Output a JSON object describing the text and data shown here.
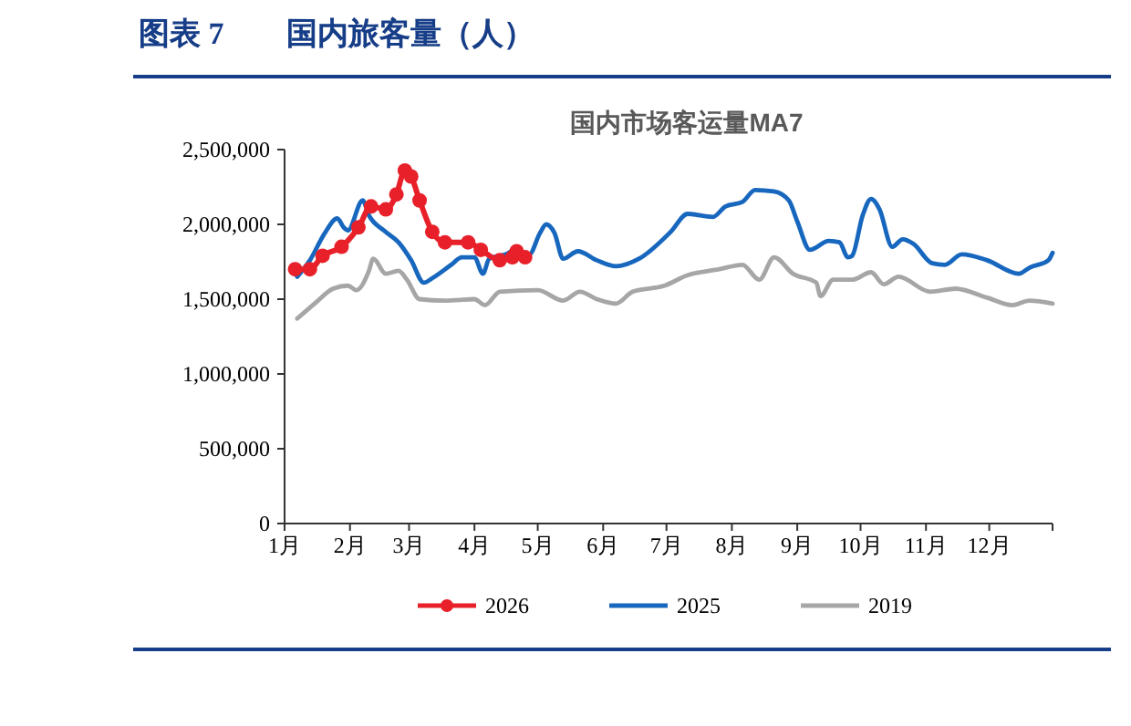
{
  "chart_data": {
    "type": "line",
    "title": "图表 7　　国内旅客量（人）",
    "subtitle": "国内市场客运量MA7",
    "xlim": [
      "--01-01",
      "--12-31"
    ],
    "xticks": [
      {
        "value": "--01-01",
        "label": "1月"
      },
      {
        "value": "--02-01",
        "label": "2月"
      },
      {
        "value": "--03-01",
        "label": "3月"
      },
      {
        "value": "--04-01",
        "label": "4月"
      },
      {
        "value": "--05-01",
        "label": "5月"
      },
      {
        "value": "--06-01",
        "label": "6月"
      },
      {
        "value": "--07-01",
        "label": "7月"
      },
      {
        "value": "--08-01",
        "label": "8月"
      },
      {
        "value": "--09-01",
        "label": "9月"
      },
      {
        "value": "--10-01",
        "label": "10月"
      },
      {
        "value": "--11-01",
        "label": "11月"
      },
      {
        "value": "--12-01",
        "label": "12月"
      },
      {
        "value": "--12-31",
        "label": null
      }
    ],
    "ylim": [
      0,
      2500000
    ],
    "yticks": [
      {
        "value": 0,
        "label": "0"
      },
      {
        "value": 500000,
        "label": "500,000"
      },
      {
        "value": 1000000,
        "label": "1,000,000"
      },
      {
        "value": 1500000,
        "label": "1,500,000"
      },
      {
        "value": 2000000,
        "label": "2,000,000"
      },
      {
        "value": 2500000,
        "label": "2,500,000"
      }
    ],
    "grid": false,
    "legend": "bottom",
    "series": [
      {
        "name": "2026",
        "color": "#e8202a",
        "marker": "circle",
        "x": [
          "--01-06",
          "--01-13",
          "--01-19",
          "--01-28",
          "--02-05",
          "--02-11",
          "--02-18",
          "--02-23",
          "--02-27",
          "--03-02",
          "--03-06",
          "--03-12",
          "--03-18",
          "--03-29",
          "--04-04",
          "--04-13",
          "--04-19",
          "--04-21",
          "--04-25"
        ],
        "values": [
          1700000,
          1700000,
          1790000,
          1850000,
          1980000,
          2120000,
          2100000,
          2200000,
          2360000,
          2320000,
          2160000,
          1950000,
          1880000,
          1880000,
          1830000,
          1760000,
          1780000,
          1820000,
          1780000
        ]
      },
      {
        "name": "2025",
        "color": "#1767be",
        "marker": "none",
        "x": [
          "--01-07",
          "--01-13",
          "--01-20",
          "--01-26",
          "--01-29",
          "--01-31",
          "--02-07",
          "--02-10",
          "--02-17",
          "--02-24",
          "--03-02",
          "--03-08",
          "--03-12",
          "--03-21",
          "--03-26",
          "--04-01",
          "--04-05",
          "--04-08",
          "--04-16",
          "--04-20",
          "--04-27",
          "--05-02",
          "--05-05",
          "--05-09",
          "--05-13",
          "--05-20",
          "--05-29",
          "--06-07",
          "--06-18",
          "--07-03",
          "--07-11",
          "--07-23",
          "--07-29",
          "--08-06",
          "--08-12",
          "--08-21",
          "--08-28",
          "--09-01",
          "--09-07",
          "--09-16",
          "--09-21",
          "--09-25",
          "--09-27",
          "--10-02",
          "--10-06",
          "--10-10",
          "--10-16",
          "--10-21",
          "--10-26",
          "--11-04",
          "--11-10",
          "--11-18",
          "--11-30",
          "--12-15",
          "--12-20",
          "--12-29",
          "--12-31"
        ],
        "values": [
          1650000,
          1760000,
          1940000,
          2040000,
          1980000,
          1960000,
          2160000,
          2060000,
          1960000,
          1880000,
          1760000,
          1610000,
          1640000,
          1730000,
          1780000,
          1780000,
          1670000,
          1770000,
          1800000,
          1830000,
          1800000,
          1940000,
          2000000,
          1940000,
          1770000,
          1820000,
          1760000,
          1720000,
          1770000,
          1950000,
          2070000,
          2050000,
          2120000,
          2150000,
          2230000,
          2220000,
          2160000,
          2020000,
          1830000,
          1890000,
          1880000,
          1780000,
          1790000,
          2060000,
          2170000,
          2100000,
          1850000,
          1900000,
          1870000,
          1740000,
          1730000,
          1800000,
          1760000,
          1670000,
          1710000,
          1760000,
          1810000
        ]
      },
      {
        "name": "2019",
        "color": "#a6a6a6",
        "marker": "none",
        "x": [
          "--01-07",
          "--01-16",
          "--01-24",
          "--01-31",
          "--02-04",
          "--02-10",
          "--02-12",
          "--02-18",
          "--02-24",
          "--02-28",
          "--03-06",
          "--03-18",
          "--04-01",
          "--04-06",
          "--04-13",
          "--05-01",
          "--05-13",
          "--05-21",
          "--05-29",
          "--06-07",
          "--06-15",
          "--06-30",
          "--07-11",
          "--07-26",
          "--08-06",
          "--08-14",
          "--08-21",
          "--08-30",
          "--09-10",
          "--09-12",
          "--09-18",
          "--09-27",
          "--10-06",
          "--10-12",
          "--10-19",
          "--11-03",
          "--11-15",
          "--11-30",
          "--12-12",
          "--12-20",
          "--12-31"
        ],
        "values": [
          1370000,
          1480000,
          1570000,
          1590000,
          1560000,
          1690000,
          1770000,
          1670000,
          1690000,
          1630000,
          1500000,
          1490000,
          1500000,
          1460000,
          1550000,
          1560000,
          1490000,
          1550000,
          1500000,
          1470000,
          1550000,
          1590000,
          1660000,
          1700000,
          1730000,
          1630000,
          1780000,
          1670000,
          1610000,
          1520000,
          1630000,
          1630000,
          1680000,
          1600000,
          1650000,
          1550000,
          1570000,
          1510000,
          1460000,
          1490000,
          1470000
        ]
      }
    ]
  }
}
